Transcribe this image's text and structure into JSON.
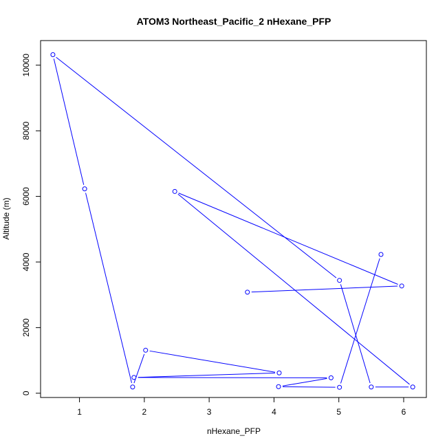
{
  "chart_data": {
    "type": "line",
    "title": "ATOM3 Northeast_Pacific_2 nHexane_PFP",
    "xlabel": "nHexane_PFP",
    "ylabel": "Altitude (m)",
    "xlim": [
      0.4,
      6.35
    ],
    "ylim": [
      -130,
      10750
    ],
    "xticks": [
      1,
      2,
      3,
      4,
      5,
      6
    ],
    "yticks": [
      0,
      2000,
      4000,
      6000,
      8000,
      10000
    ],
    "series": [
      {
        "color": "#0000ff",
        "marker": "open-circle",
        "x": [
          5.65,
          5.01,
          4.07,
          4.88,
          1.84,
          4.08,
          2.02,
          1.82,
          1.08,
          0.59,
          5.01,
          5.5,
          6.14,
          2.47,
          5.97,
          3.59
        ],
        "y": [
          4230,
          180,
          200,
          470,
          480,
          620,
          1310,
          190,
          6230,
          10320,
          3440,
          190,
          190,
          6150,
          3270,
          3080
        ]
      }
    ]
  }
}
